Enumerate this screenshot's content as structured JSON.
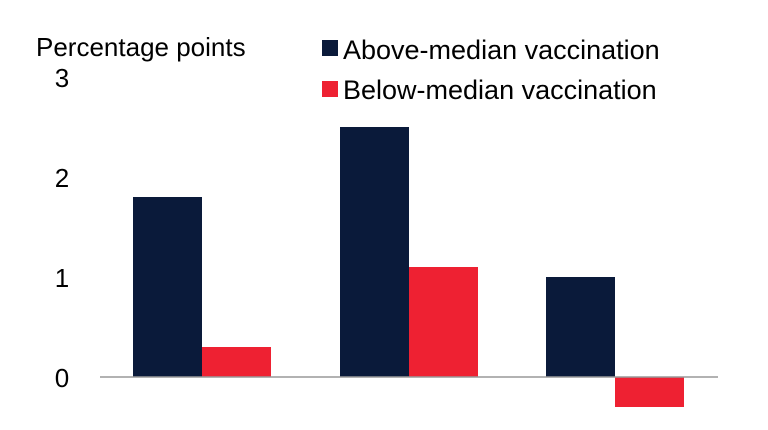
{
  "chart_data": {
    "type": "bar",
    "title": "",
    "xlabel": "",
    "ylabel": "Percentage points",
    "categories": [
      "",
      "",
      ""
    ],
    "series": [
      {
        "name": "Above-median vaccination",
        "color": "#0a1a3a",
        "values": [
          1.8,
          2.5,
          1.0
        ]
      },
      {
        "name": "Below-median vaccination",
        "color": "#ee2132",
        "values": [
          0.3,
          1.1,
          -0.3
        ]
      }
    ],
    "ylim": [
      0,
      3
    ],
    "yticks": [
      "0",
      "1",
      "2",
      "3"
    ],
    "grid": false,
    "legend_position": "top-right"
  }
}
